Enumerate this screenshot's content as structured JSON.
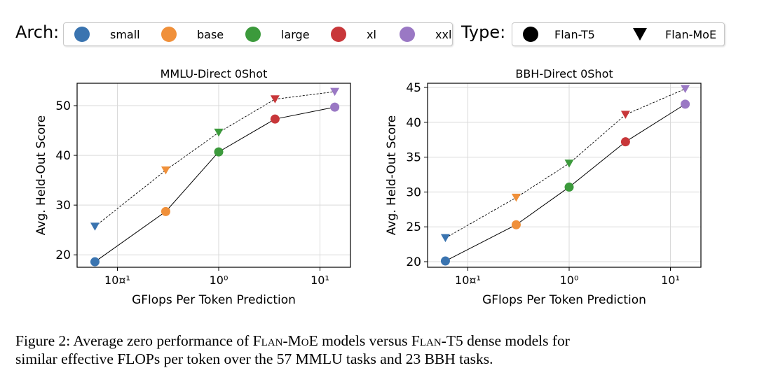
{
  "legend": {
    "arch_title": "Arch:",
    "type_title": "Type:",
    "arch_items": [
      {
        "label": "small",
        "color": "#3a74b0"
      },
      {
        "label": "base",
        "color": "#f0903a"
      },
      {
        "label": "large",
        "color": "#3c9a3c"
      },
      {
        "label": "xl",
        "color": "#c8373a"
      },
      {
        "label": "xxl",
        "color": "#9a78c4"
      }
    ],
    "type_items": [
      {
        "label": "Flan-T5",
        "marker": "circle"
      },
      {
        "label": "Flan-MoE",
        "marker": "triangle-down"
      }
    ]
  },
  "chart_data": [
    {
      "type": "line",
      "title": "MMLU-Direct 0Shot",
      "xlabel": "GFlops Per Token Prediction",
      "ylabel": "Avg. Held-Out Score",
      "xscale": "log",
      "xlim": [
        0.04,
        20
      ],
      "ylim": [
        17.5,
        54.5
      ],
      "xticks": [
        {
          "value": 0.1,
          "label": "10¤¹"
        },
        {
          "value": 1,
          "label": "10⁰"
        },
        {
          "value": 10,
          "label": "10¹"
        }
      ],
      "yticks": [
        20,
        30,
        40,
        50
      ],
      "grid": true,
      "x": [
        0.06,
        0.3,
        1.0,
        3.6,
        14
      ],
      "point_colors": [
        "#3a74b0",
        "#f0903a",
        "#3c9a3c",
        "#c8373a",
        "#9a78c4"
      ],
      "series": [
        {
          "name": "Flan-T5",
          "marker": "circle",
          "line": "solid",
          "values": [
            18.6,
            28.7,
            40.7,
            47.3,
            49.7
          ]
        },
        {
          "name": "Flan-MoE",
          "marker": "triangle-down",
          "line": "dashed",
          "values": [
            25.7,
            37.0,
            44.6,
            51.3,
            52.8
          ]
        }
      ]
    },
    {
      "type": "line",
      "title": "BBH-Direct 0Shot",
      "xlabel": "GFlops Per Token Prediction",
      "ylabel": "Avg. Held-Out Score",
      "xscale": "log",
      "xlim": [
        0.04,
        20
      ],
      "ylim": [
        19.2,
        45.6
      ],
      "xticks": [
        {
          "value": 0.1,
          "label": "10¤¹"
        },
        {
          "value": 1,
          "label": "10⁰"
        },
        {
          "value": 10,
          "label": "10¹"
        }
      ],
      "yticks": [
        20,
        25,
        30,
        35,
        40,
        45
      ],
      "grid": true,
      "x": [
        0.06,
        0.3,
        1.0,
        3.6,
        14
      ],
      "point_colors": [
        "#3a74b0",
        "#f0903a",
        "#3c9a3c",
        "#c8373a",
        "#9a78c4"
      ],
      "series": [
        {
          "name": "Flan-T5",
          "marker": "circle",
          "line": "solid",
          "values": [
            20.1,
            25.3,
            30.7,
            37.2,
            42.6
          ]
        },
        {
          "name": "Flan-MoE",
          "marker": "triangle-down",
          "line": "dashed",
          "values": [
            23.4,
            29.2,
            34.1,
            41.1,
            44.8
          ]
        }
      ]
    }
  ],
  "caption": {
    "prefix": "Figure 2:  Average zero performance of ",
    "model_a": "Flan-MoE",
    "middle": " models versus ",
    "model_b": "Flan-T5",
    "suffix_line1": " dense models for",
    "line2": "similar effective FLOPs per token over the 57 MMLU tasks and 23 BBH tasks."
  }
}
